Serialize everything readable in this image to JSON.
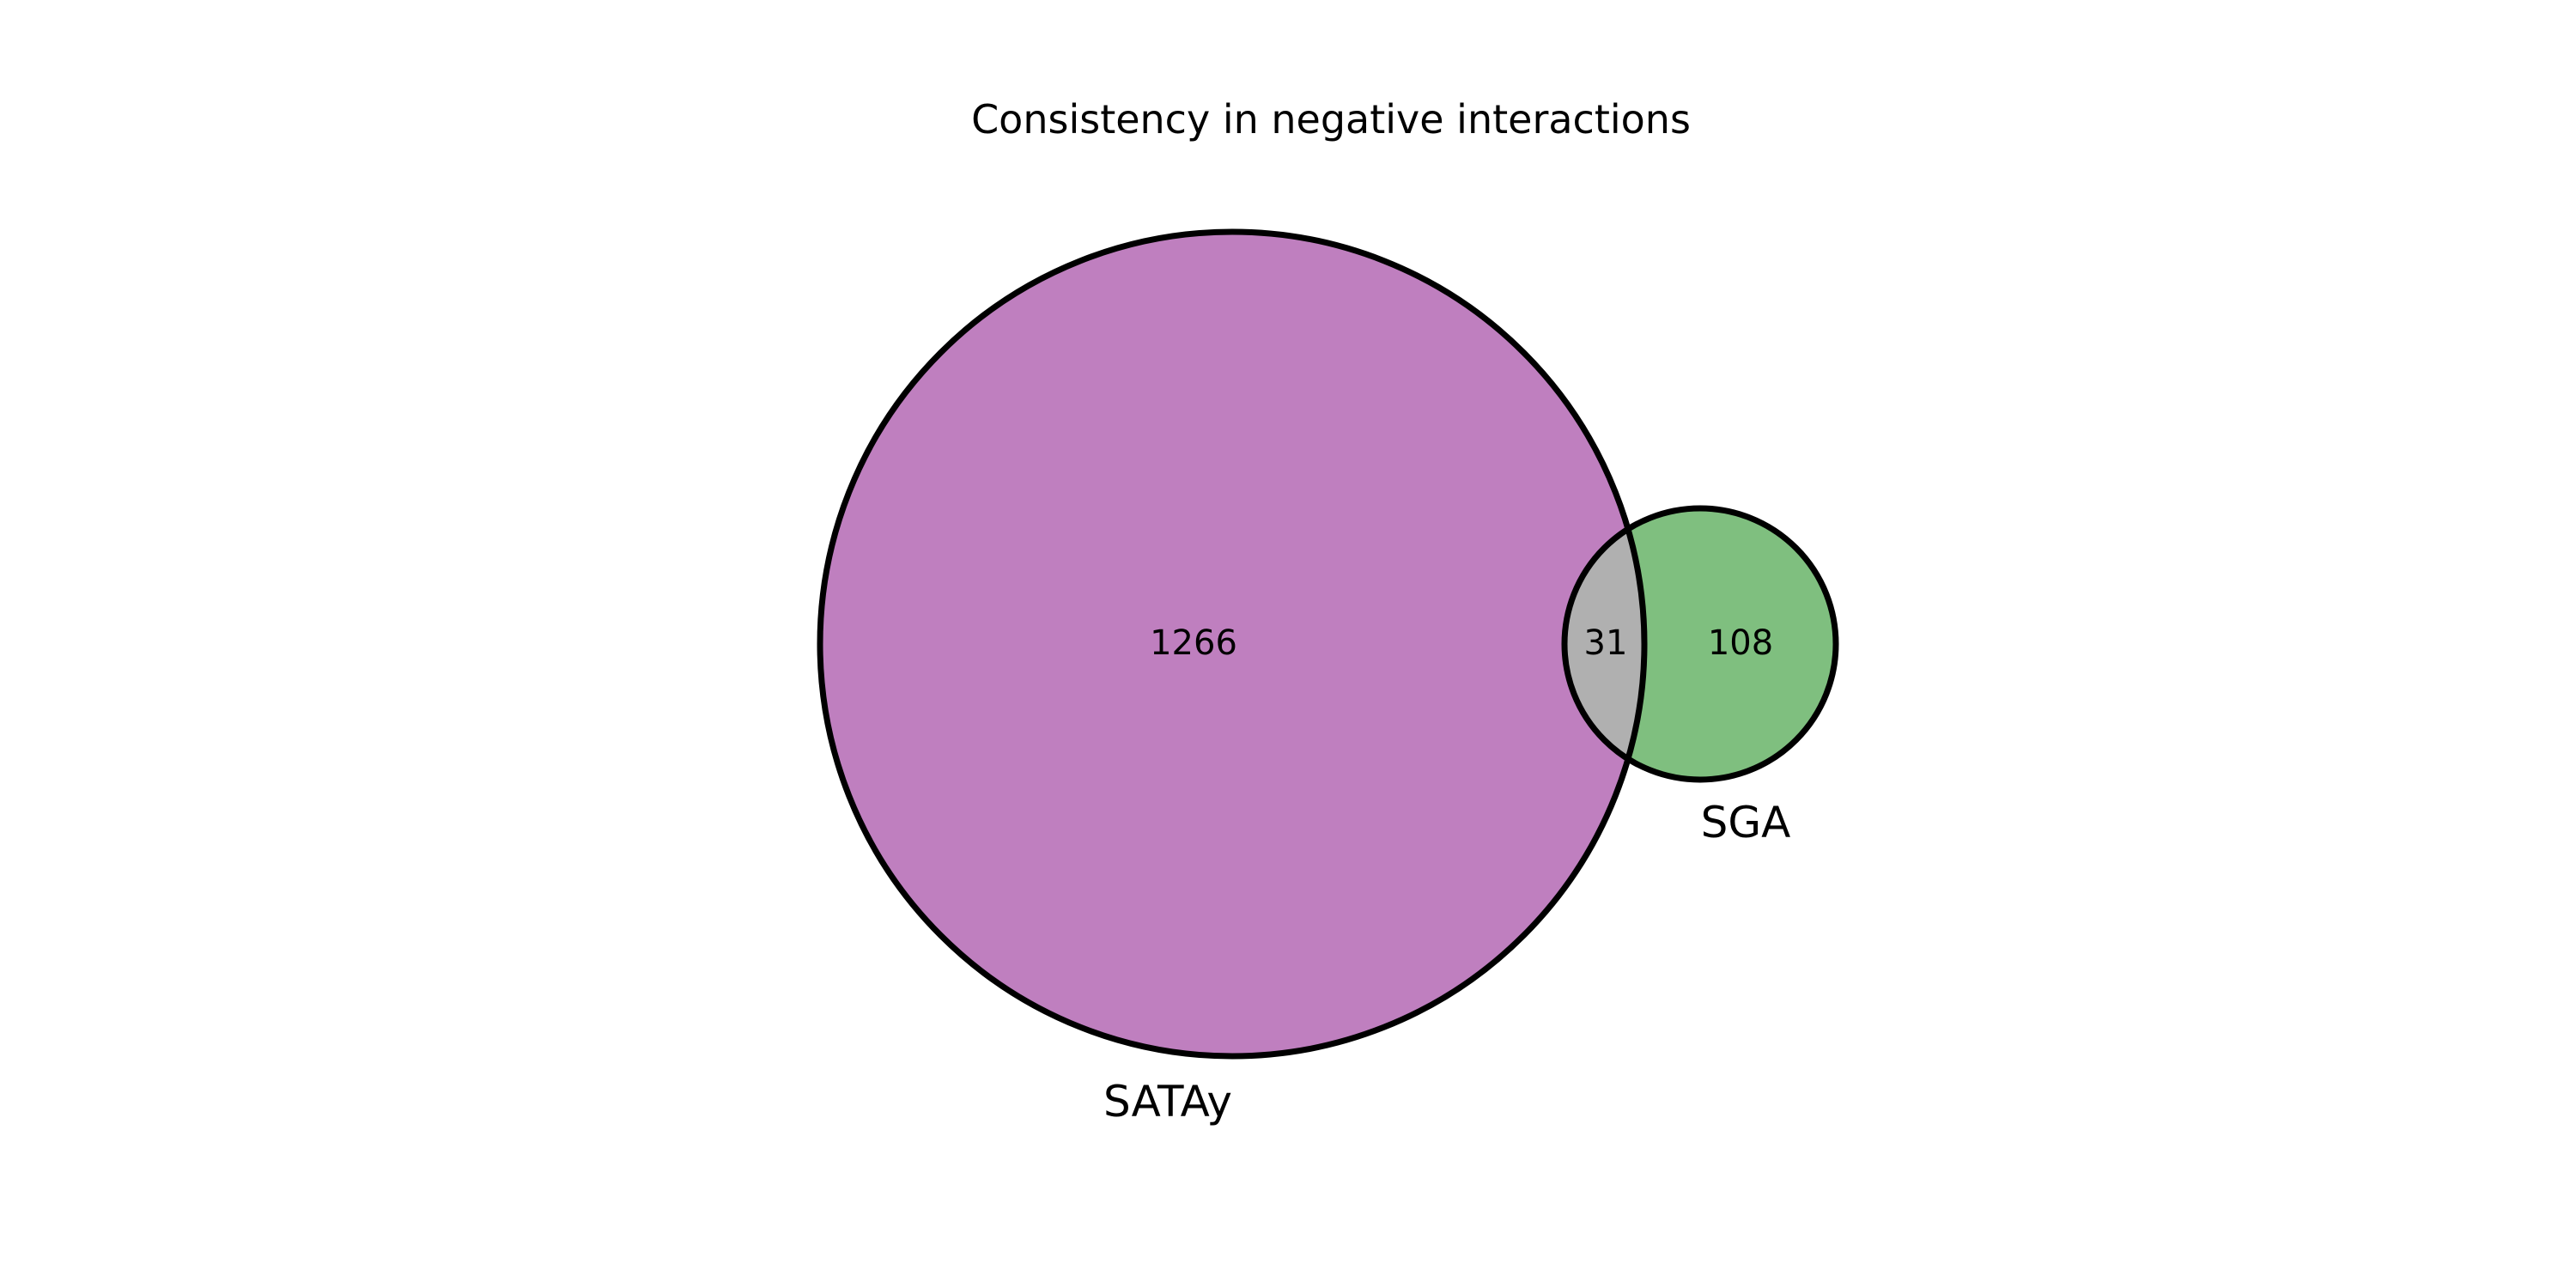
{
  "chart_data": {
    "type": "venn",
    "title": "Consistency in negative interactions",
    "sets": [
      {
        "name": "SATAy",
        "only_count": "1266",
        "color": "#bf7fbf"
      },
      {
        "name": "SGA",
        "only_count": "108",
        "color": "#7fbf7f"
      }
    ],
    "intersection": {
      "count": "31",
      "color": "#b0b0b0"
    },
    "outline_color": "#000000"
  }
}
